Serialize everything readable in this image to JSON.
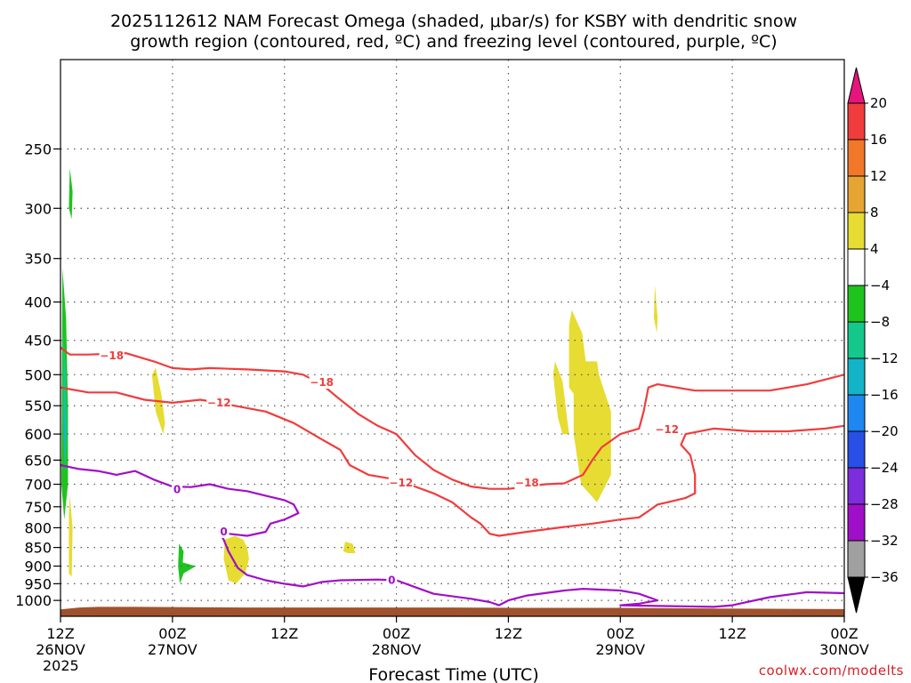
{
  "title": {
    "line1": "2025112612 NAM Forecast Omega (shaded, μbar/s) for KSBY with dendritic snow",
    "line2": "growth region (contoured, red, ºC) and freezing level (contoured, purple, ºC)"
  },
  "credit": "coolwx.com/modelts",
  "chart_data": {
    "type": "heatmap",
    "title": "2025112612 NAM Forecast Omega (shaded, μbar/s) for KSBY with dendritic snow growth region (contoured, red, ºC) and freezing level (contoured, purple, ºC)",
    "xlabel": "Forecast Time (UTC)",
    "ylabel": "",
    "x_range_hours": [
      0,
      84
    ],
    "y_axis": {
      "scale": "log-pressure",
      "units": "mb",
      "inverted": true,
      "ylim": [
        1050,
        190
      ]
    },
    "x_ticks": [
      {
        "hour": 0,
        "line1": "12Z",
        "line2": "26NOV",
        "line3": "2025"
      },
      {
        "hour": 12,
        "line1": "00Z",
        "line2": "27NOV",
        "line3": ""
      },
      {
        "hour": 24,
        "line1": "12Z",
        "line2": "",
        "line3": ""
      },
      {
        "hour": 36,
        "line1": "00Z",
        "line2": "28NOV",
        "line3": ""
      },
      {
        "hour": 48,
        "line1": "12Z",
        "line2": "",
        "line3": ""
      },
      {
        "hour": 60,
        "line1": "00Z",
        "line2": "29NOV",
        "line3": ""
      },
      {
        "hour": 72,
        "line1": "12Z",
        "line2": "",
        "line3": ""
      },
      {
        "hour": 84,
        "line1": "00Z",
        "line2": "30NOV",
        "line3": ""
      }
    ],
    "y_ticks": [
      250,
      300,
      350,
      400,
      450,
      500,
      550,
      600,
      650,
      700,
      750,
      800,
      850,
      900,
      950,
      1000
    ],
    "grid": true,
    "colorbar": {
      "labels": [
        "20",
        "16",
        "12",
        "8",
        "4",
        "−4",
        "−8",
        "−12",
        "−16",
        "−20",
        "−24",
        "−28",
        "−32",
        "−36"
      ],
      "bands": [
        {
          "from": 16,
          "to": 20,
          "color": "#f03c3c"
        },
        {
          "from": 12,
          "to": 16,
          "color": "#f07828"
        },
        {
          "from": 8,
          "to": 12,
          "color": "#e6a532"
        },
        {
          "from": 4,
          "to": 8,
          "color": "#e6dc32"
        },
        {
          "from": -4,
          "to": 4,
          "color": "#ffffff"
        },
        {
          "from": -8,
          "to": -4,
          "color": "#1ec31e"
        },
        {
          "from": -12,
          "to": -8,
          "color": "#14c88c"
        },
        {
          "from": -16,
          "to": -12,
          "color": "#14b4c8"
        },
        {
          "from": -20,
          "to": -16,
          "color": "#1e87f0"
        },
        {
          "from": -24,
          "to": -20,
          "color": "#2850e6"
        },
        {
          "from": -28,
          "to": -24,
          "color": "#7d2ddc"
        },
        {
          "from": -32,
          "to": -28,
          "color": "#a00fc8"
        },
        {
          "from": -36,
          "to": -32,
          "color": "#a0a0a0"
        }
      ],
      "top_arrow_color": "#e6147d",
      "bottom_arrow_color": "#000000"
    },
    "terrain_color": "#a0522d",
    "omega_regions": [
      {
        "value": 6,
        "color": "#e6dc32",
        "points": [
          [
            10.2,
            490
          ],
          [
            10.8,
            530
          ],
          [
            11.2,
            580
          ],
          [
            11.0,
            600
          ],
          [
            10.2,
            560
          ],
          [
            9.8,
            500
          ]
        ]
      },
      {
        "value": 6,
        "color": "#e6dc32",
        "points": [
          [
            53.0,
            480
          ],
          [
            53.8,
            510
          ],
          [
            54.2,
            560
          ],
          [
            54.5,
            600
          ],
          [
            53.8,
            600
          ],
          [
            53.3,
            570
          ],
          [
            52.8,
            500
          ]
        ]
      },
      {
        "value": 6,
        "color": "#e6dc32",
        "points": [
          [
            54.8,
            410
          ],
          [
            55.9,
            440
          ],
          [
            56.3,
            480
          ],
          [
            57.5,
            480
          ],
          [
            57.7,
            500
          ],
          [
            59.0,
            560
          ],
          [
            59.0,
            680
          ],
          [
            57.5,
            740
          ],
          [
            55.8,
            700
          ],
          [
            55.0,
            600
          ],
          [
            55.0,
            530
          ],
          [
            54.5,
            520
          ],
          [
            54.5,
            430
          ]
        ]
      },
      {
        "value": 6,
        "color": "#e6dc32",
        "points": [
          [
            63.7,
            380
          ],
          [
            64.0,
            420
          ],
          [
            63.9,
            440
          ],
          [
            63.6,
            420
          ]
        ]
      },
      {
        "value": 6,
        "color": "#e6dc32",
        "points": [
          [
            1.0,
            725
          ],
          [
            1.3,
            800
          ],
          [
            1.2,
            930
          ],
          [
            0.9,
            920
          ],
          [
            0.9,
            760
          ]
        ]
      },
      {
        "value": 6,
        "color": "#e6dc32",
        "points": [
          [
            18.7,
            820
          ],
          [
            19.6,
            830
          ],
          [
            20.0,
            850
          ],
          [
            20.2,
            880
          ],
          [
            19.8,
            920
          ],
          [
            18.8,
            950
          ],
          [
            18.0,
            940
          ],
          [
            17.5,
            880
          ],
          [
            17.6,
            830
          ]
        ]
      },
      {
        "value": 6,
        "color": "#e6dc32",
        "points": [
          [
            30.5,
            835
          ],
          [
            31.3,
            840
          ],
          [
            31.6,
            865
          ],
          [
            30.8,
            865
          ],
          [
            30.3,
            860
          ]
        ]
      },
      {
        "value": -6,
        "color": "#1ec31e",
        "points": [
          [
            0.2,
            360
          ],
          [
            0.6,
            420
          ],
          [
            0.8,
            550
          ],
          [
            0.8,
            700
          ],
          [
            0.4,
            780
          ],
          [
            0.1,
            700
          ]
        ]
      },
      {
        "value": -6,
        "color": "#1ec31e",
        "points": [
          [
            1.0,
            265
          ],
          [
            1.3,
            285
          ],
          [
            1.2,
            310
          ],
          [
            0.9,
            300
          ]
        ]
      },
      {
        "value": -6,
        "color": "#1ec31e",
        "points": [
          [
            12.7,
            840
          ],
          [
            13.2,
            860
          ],
          [
            13.1,
            890
          ],
          [
            14.5,
            900
          ],
          [
            13.2,
            920
          ],
          [
            12.8,
            950
          ],
          [
            12.6,
            900
          ]
        ]
      },
      {
        "value": -10,
        "color": "#14c88c",
        "points": [
          [
            0.3,
            440
          ],
          [
            0.6,
            500
          ],
          [
            0.7,
            600
          ],
          [
            0.5,
            680
          ],
          [
            0.3,
            560
          ]
        ]
      },
      {
        "value": -14,
        "color": "#14b4c8",
        "points": [
          [
            0.35,
            520
          ],
          [
            0.55,
            600
          ],
          [
            0.4,
            650
          ],
          [
            0.3,
            580
          ]
        ]
      }
    ],
    "contours": [
      {
        "name": "-18",
        "color": "#f03c3c",
        "labels": [
          {
            "text": "−18",
            "x": 5.5,
            "y": 472
          },
          {
            "text": "−18",
            "x": 28.0,
            "y": 512
          },
          {
            "text": "−18",
            "x": 50.0,
            "y": 697
          }
        ],
        "points": [
          [
            0,
            460
          ],
          [
            1,
            470
          ],
          [
            3,
            470
          ],
          [
            7,
            468
          ],
          [
            10,
            480
          ],
          [
            12,
            490
          ],
          [
            14,
            492
          ],
          [
            16,
            490
          ],
          [
            20,
            492
          ],
          [
            24,
            495
          ],
          [
            26,
            500
          ],
          [
            28,
            515
          ],
          [
            30,
            540
          ],
          [
            32,
            565
          ],
          [
            34,
            585
          ],
          [
            36,
            600
          ],
          [
            38,
            640
          ],
          [
            40,
            670
          ],
          [
            42,
            690
          ],
          [
            44,
            705
          ],
          [
            46,
            710
          ],
          [
            48,
            710
          ],
          [
            50,
            705
          ],
          [
            52,
            700
          ],
          [
            54,
            698
          ],
          [
            56,
            680
          ],
          [
            57,
            650
          ],
          [
            58,
            625
          ],
          [
            60,
            600
          ],
          [
            62,
            590
          ],
          [
            62.5,
            560
          ],
          [
            63,
            520
          ],
          [
            64,
            515
          ],
          [
            66,
            520
          ],
          [
            68,
            525
          ],
          [
            72,
            525
          ],
          [
            76,
            525
          ],
          [
            80,
            515
          ],
          [
            84,
            500
          ]
        ]
      },
      {
        "name": "-12",
        "color": "#f03c3c",
        "labels": [
          {
            "text": "−12",
            "x": 17.0,
            "y": 545
          },
          {
            "text": "−12",
            "x": 36.5,
            "y": 697
          },
          {
            "text": "−12",
            "x": 65.0,
            "y": 592
          }
        ],
        "points": [
          [
            0,
            520
          ],
          [
            3,
            528
          ],
          [
            6,
            528
          ],
          [
            9,
            540
          ],
          [
            12,
            545
          ],
          [
            15,
            540
          ],
          [
            18,
            548
          ],
          [
            22,
            560
          ],
          [
            25,
            580
          ],
          [
            28,
            610
          ],
          [
            30,
            630
          ],
          [
            31,
            660
          ],
          [
            33,
            680
          ],
          [
            36,
            690
          ],
          [
            38,
            705
          ],
          [
            40,
            720
          ],
          [
            42,
            740
          ],
          [
            44,
            775
          ],
          [
            45,
            790
          ],
          [
            46,
            815
          ],
          [
            47,
            820
          ],
          [
            50,
            810
          ],
          [
            54,
            798
          ],
          [
            57,
            790
          ],
          [
            60,
            780
          ],
          [
            62,
            775
          ],
          [
            63,
            760
          ],
          [
            64,
            745
          ],
          [
            65,
            740
          ],
          [
            67,
            730
          ],
          [
            68,
            720
          ],
          [
            68,
            680
          ],
          [
            67.5,
            640
          ],
          [
            66.5,
            620
          ],
          [
            67,
            600
          ],
          [
            70,
            590
          ],
          [
            74,
            595
          ],
          [
            78,
            595
          ],
          [
            82,
            590
          ],
          [
            84,
            585
          ]
        ]
      },
      {
        "name": "0",
        "color": "#a00fc8",
        "labels": [
          {
            "text": "0",
            "x": 12.5,
            "y": 712
          },
          {
            "text": "0",
            "x": 17.5,
            "y": 810
          },
          {
            "text": "0",
            "x": 35.5,
            "y": 940
          }
        ],
        "points": [
          [
            0,
            660
          ],
          [
            2,
            668
          ],
          [
            4,
            672
          ],
          [
            6,
            680
          ],
          [
            8,
            672
          ],
          [
            10,
            690
          ],
          [
            12,
            705
          ],
          [
            14,
            706
          ],
          [
            16,
            700
          ],
          [
            18,
            710
          ],
          [
            20,
            715
          ],
          [
            22,
            725
          ],
          [
            24,
            735
          ],
          [
            25,
            745
          ],
          [
            25.5,
            765
          ],
          [
            24,
            780
          ],
          [
            22.5,
            790
          ],
          [
            22,
            810
          ],
          [
            20,
            820
          ],
          [
            18,
            815
          ],
          [
            17,
            810
          ],
          [
            17.5,
            830
          ],
          [
            18,
            860
          ],
          [
            19,
            905
          ],
          [
            20,
            925
          ],
          [
            22,
            940
          ],
          [
            24,
            950
          ],
          [
            26,
            958
          ],
          [
            28,
            945
          ],
          [
            30,
            940
          ],
          [
            34,
            938
          ],
          [
            36,
            940
          ],
          [
            38,
            960
          ],
          [
            40,
            980
          ],
          [
            44,
            995
          ],
          [
            46,
            1005
          ],
          [
            47,
            1015
          ],
          [
            48,
            1000
          ],
          [
            50,
            985
          ],
          [
            54,
            970
          ],
          [
            56,
            965
          ],
          [
            60,
            970
          ],
          [
            62,
            980
          ],
          [
            64,
            1000
          ],
          [
            62,
            1010
          ],
          [
            60,
            1015
          ],
          [
            70,
            1020
          ],
          [
            72,
            1015
          ],
          [
            76,
            990
          ],
          [
            80,
            975
          ],
          [
            84,
            978
          ]
        ]
      }
    ],
    "terrain": [
      [
        0,
        1028
      ],
      [
        2,
        1022
      ],
      [
        4,
        1020
      ],
      [
        8,
        1020
      ],
      [
        14,
        1021
      ],
      [
        20,
        1022
      ],
      [
        30,
        1022
      ],
      [
        40,
        1022
      ],
      [
        50,
        1023
      ],
      [
        60,
        1023
      ],
      [
        70,
        1025
      ],
      [
        84,
        1027
      ]
    ]
  },
  "axes": {
    "x_label": "Forecast Time (UTC)"
  }
}
